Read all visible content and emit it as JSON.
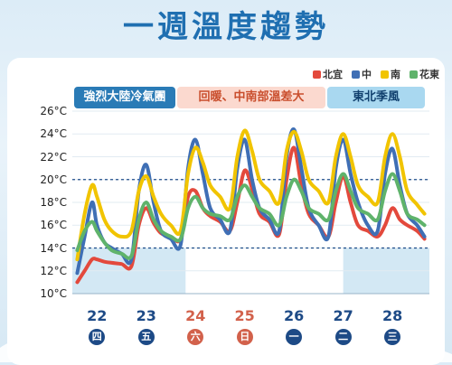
{
  "title": "一週溫度趨勢",
  "colors": {
    "yilan": "#e3493c",
    "taichung": "#3f6fb5",
    "tainan": "#f1c400",
    "hualien": "#5fb36b"
  },
  "banners": [
    {
      "text": "強烈大陸冷氣團"
    },
    {
      "text": "回暖、中南部溫差大"
    },
    {
      "text": "東北季風"
    }
  ],
  "chart_data": {
    "type": "line",
    "y_unit": "°C",
    "ylim": [
      10,
      26
    ],
    "yticks": [
      "26°C",
      "24°C",
      "22°C",
      "20°C",
      "18°C",
      "16°C",
      "14°C",
      "12°C",
      "10°C"
    ],
    "reference_lines": [
      20,
      14
    ],
    "x_days": [
      {
        "day": "22",
        "weekday": "四",
        "weekend": false
      },
      {
        "day": "23",
        "weekday": "五",
        "weekend": false
      },
      {
        "day": "24",
        "weekday": "六",
        "weekend": true
      },
      {
        "day": "25",
        "weekday": "日",
        "weekend": true
      },
      {
        "day": "26",
        "weekday": "一",
        "weekend": false
      },
      {
        "day": "27",
        "weekday": "二",
        "weekend": false
      },
      {
        "day": "28",
        "weekday": "三",
        "weekend": false
      }
    ],
    "x": [
      21.6,
      21.75,
      21.9,
      22.0,
      22.15,
      22.3,
      22.5,
      22.7,
      22.85,
      23.0,
      23.15,
      23.3,
      23.5,
      23.7,
      23.85,
      24.0,
      24.15,
      24.3,
      24.5,
      24.7,
      24.85,
      25.0,
      25.15,
      25.3,
      25.5,
      25.7,
      25.85,
      26.0,
      26.15,
      26.3,
      26.5,
      26.7,
      26.85,
      27.0,
      27.15,
      27.3,
      27.5,
      27.7,
      27.85,
      28.0,
      28.15,
      28.3,
      28.5,
      28.65
    ],
    "series": [
      {
        "name": "北宜",
        "color_key": "yilan",
        "values": [
          11.0,
          12.0,
          13.0,
          13.0,
          12.8,
          12.7,
          12.6,
          12.4,
          16.0,
          17.5,
          16.2,
          15.3,
          15.0,
          14.8,
          18.5,
          19.0,
          17.5,
          16.8,
          16.3,
          15.5,
          18.0,
          20.8,
          19.2,
          17.0,
          16.3,
          15.2,
          20.0,
          22.8,
          19.5,
          17.0,
          16.0,
          15.0,
          18.0,
          20.3,
          18.0,
          16.0,
          15.5,
          15.0,
          16.0,
          17.5,
          16.5,
          16.0,
          15.5,
          14.8
        ]
      },
      {
        "name": "中",
        "color_key": "taichung",
        "values": [
          11.8,
          15.0,
          18.0,
          16.0,
          14.5,
          14.0,
          13.5,
          13.0,
          19.0,
          21.3,
          18.0,
          15.5,
          14.8,
          14.3,
          21.0,
          23.5,
          20.5,
          17.5,
          16.5,
          15.5,
          21.0,
          23.5,
          20.0,
          17.5,
          16.5,
          15.5,
          22.0,
          24.4,
          21.0,
          17.5,
          16.0,
          15.0,
          21.0,
          23.5,
          20.5,
          18.0,
          16.0,
          15.5,
          20.5,
          22.7,
          19.5,
          17.0,
          16.0,
          15.0
        ]
      },
      {
        "name": "南",
        "color_key": "tainan",
        "values": [
          13.0,
          17.0,
          19.5,
          18.5,
          16.5,
          15.5,
          15.0,
          15.5,
          19.0,
          20.3,
          18.5,
          17.0,
          16.0,
          15.5,
          20.5,
          22.8,
          21.5,
          19.5,
          18.5,
          17.5,
          22.0,
          24.3,
          22.5,
          20.0,
          19.0,
          18.0,
          22.5,
          24.2,
          22.5,
          20.0,
          19.0,
          18.0,
          22.0,
          24.0,
          22.0,
          19.5,
          18.5,
          18.0,
          22.0,
          24.0,
          22.0,
          19.0,
          17.8,
          17.0
        ]
      },
      {
        "name": "花東",
        "color_key": "hualien",
        "values": [
          13.8,
          15.5,
          16.3,
          15.5,
          14.5,
          13.8,
          13.5,
          13.3,
          16.5,
          18.0,
          16.5,
          15.5,
          15.0,
          14.8,
          17.5,
          18.5,
          17.5,
          17.0,
          16.8,
          16.5,
          18.5,
          19.5,
          18.5,
          17.5,
          17.0,
          16.0,
          18.5,
          20.0,
          19.0,
          17.5,
          17.0,
          16.5,
          19.0,
          20.5,
          19.0,
          17.5,
          17.0,
          16.5,
          19.0,
          20.5,
          19.0,
          17.0,
          16.5,
          16.0
        ]
      }
    ]
  }
}
